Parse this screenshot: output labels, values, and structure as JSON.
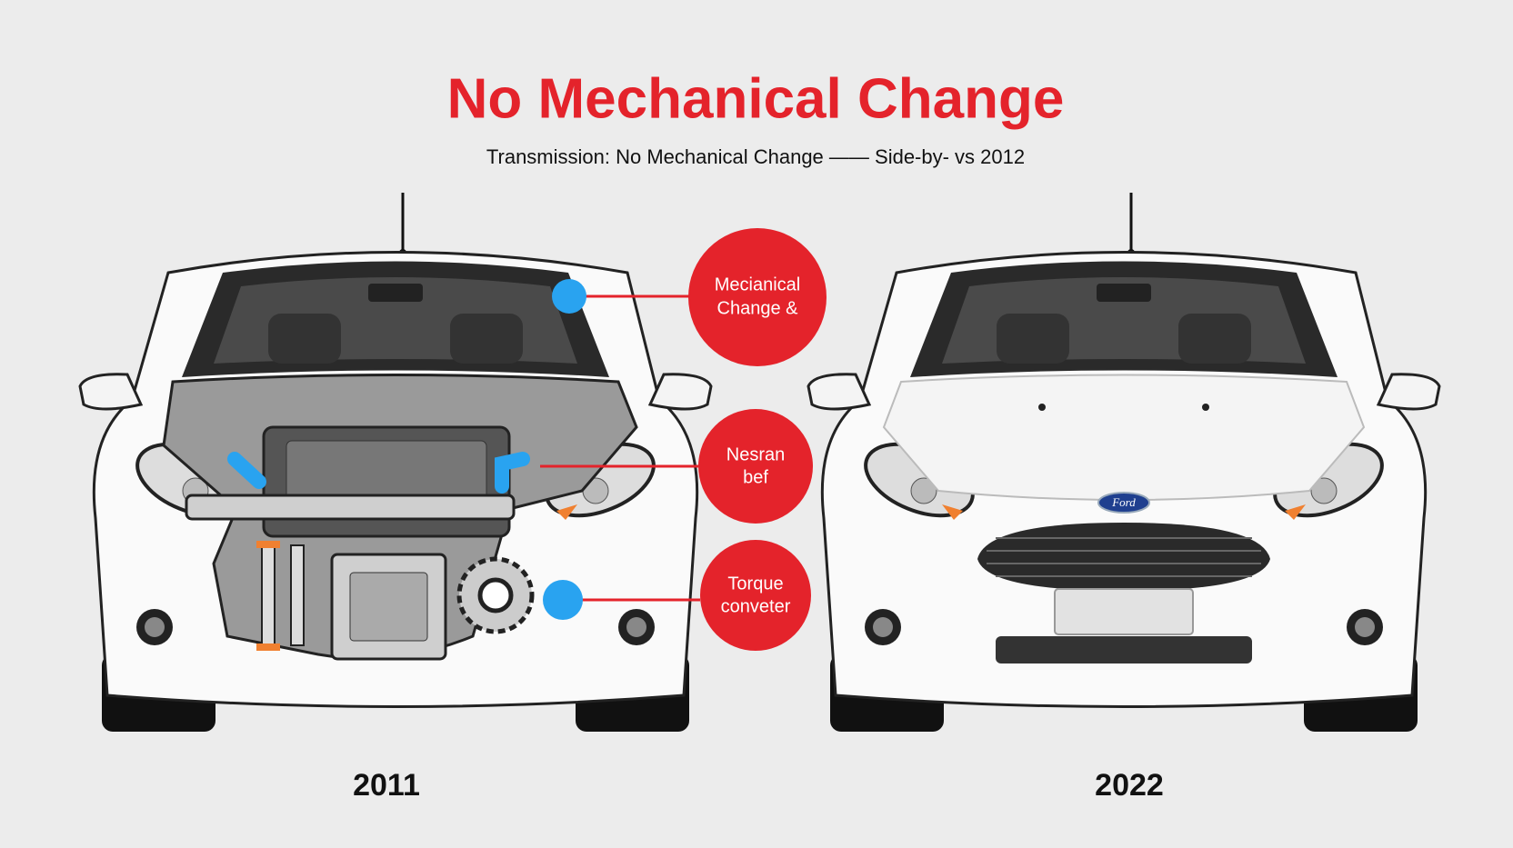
{
  "header": {
    "title": "No Mechanical Change",
    "subtitle": "Transmission: No Mechanical Change —— Side-by- vs 2012"
  },
  "callouts": [
    {
      "lines": [
        "Mecianical",
        "Change &"
      ]
    },
    {
      "lines": [
        "Nesran",
        "bef"
      ]
    },
    {
      "lines": [
        "Torque",
        "conveter"
      ]
    }
  ],
  "cars": [
    {
      "year": "2011"
    },
    {
      "year": "2022",
      "badge": "Ford"
    }
  ]
}
